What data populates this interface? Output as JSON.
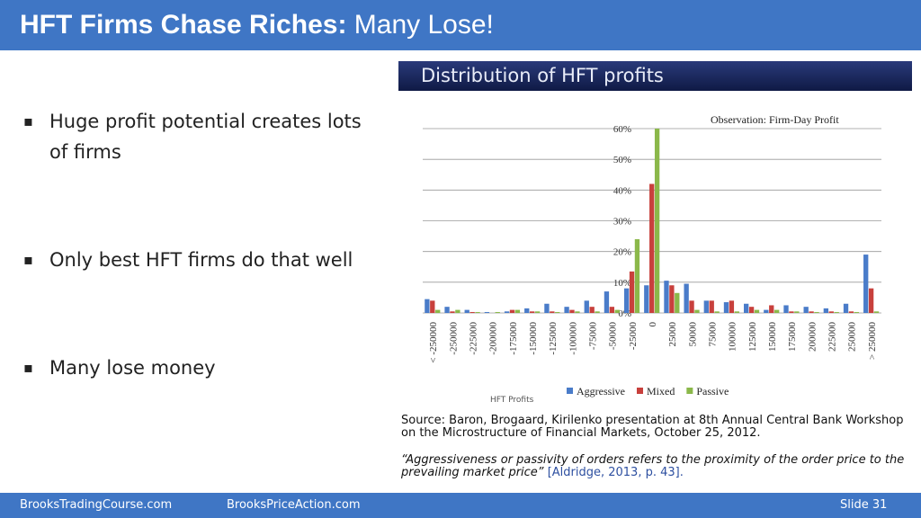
{
  "header": {
    "title_bold": "HFT Firms Chase Riches:",
    "title_rest": "Many Lose!"
  },
  "bullets": [
    "Huge profit potential creates lots of firms",
    "Only best HFT firms do that well",
    "Many lose money"
  ],
  "chart_data": {
    "type": "bar",
    "title": "Distribution of HFT profits",
    "subtitle": "Observation: Firm-Day Profit",
    "x_label": "HFT Profits",
    "categories": [
      "< -250000",
      "-250000",
      "-225000",
      "-200000",
      "-175000",
      "-150000",
      "-125000",
      "-100000",
      "-75000",
      "-50000",
      "-25000",
      "0",
      "25000",
      "50000",
      "75000",
      "100000",
      "125000",
      "150000",
      "175000",
      "200000",
      "225000",
      "250000",
      "> 250000"
    ],
    "series": [
      {
        "name": "Aggressive",
        "color": "#4a7cc9",
        "values": [
          4.5,
          2,
          1,
          0.3,
          0.5,
          1.5,
          3,
          2,
          4,
          7,
          8,
          9,
          10.5,
          9.5,
          4,
          3.5,
          3,
          1,
          2.5,
          2,
          1.5,
          3,
          19
        ]
      },
      {
        "name": "Mixed",
        "color": "#c8403c",
        "values": [
          4,
          0.5,
          0.3,
          0,
          1,
          0.5,
          0.5,
          1,
          2,
          2,
          13.5,
          42,
          9,
          4,
          4,
          4,
          2,
          2.5,
          0.5,
          0.5,
          0.5,
          0.5,
          8
        ]
      },
      {
        "name": "Passive",
        "color": "#8bb84a",
        "values": [
          1,
          1,
          0.3,
          0.3,
          1,
          0.5,
          0.3,
          0.5,
          0.5,
          1,
          24,
          60,
          6.5,
          1,
          0.5,
          0.5,
          1,
          1,
          0.5,
          0.3,
          0.3,
          0.3,
          0.5
        ]
      }
    ],
    "ylim": [
      0,
      62
    ],
    "yticks": [
      {
        "value": 0,
        "label": "0%"
      },
      {
        "value": 10,
        "label": "10%"
      },
      {
        "value": 20,
        "label": "20%"
      },
      {
        "value": 30,
        "label": "30%"
      },
      {
        "value": 40,
        "label": "40%"
      },
      {
        "value": 50,
        "label": "50%"
      },
      {
        "value": 60,
        "label": "60%"
      }
    ],
    "grid": true
  },
  "source": "Source: Baron, Brogaard, Kirilenko presentation at 8th Annual Central Bank Workshop on the Microstructure of Financial Markets, October 25, 2012.",
  "quote": {
    "text": "“Aggressiveness or passivity of orders refers to the proximity of the order price to the prevailing market price”",
    "citation": "[Aldridge, 2013, p. 43]."
  },
  "footer": {
    "left": "BrooksTradingCourse.com",
    "middle": "BrooksPriceAction.com",
    "slide": "Slide 31"
  }
}
